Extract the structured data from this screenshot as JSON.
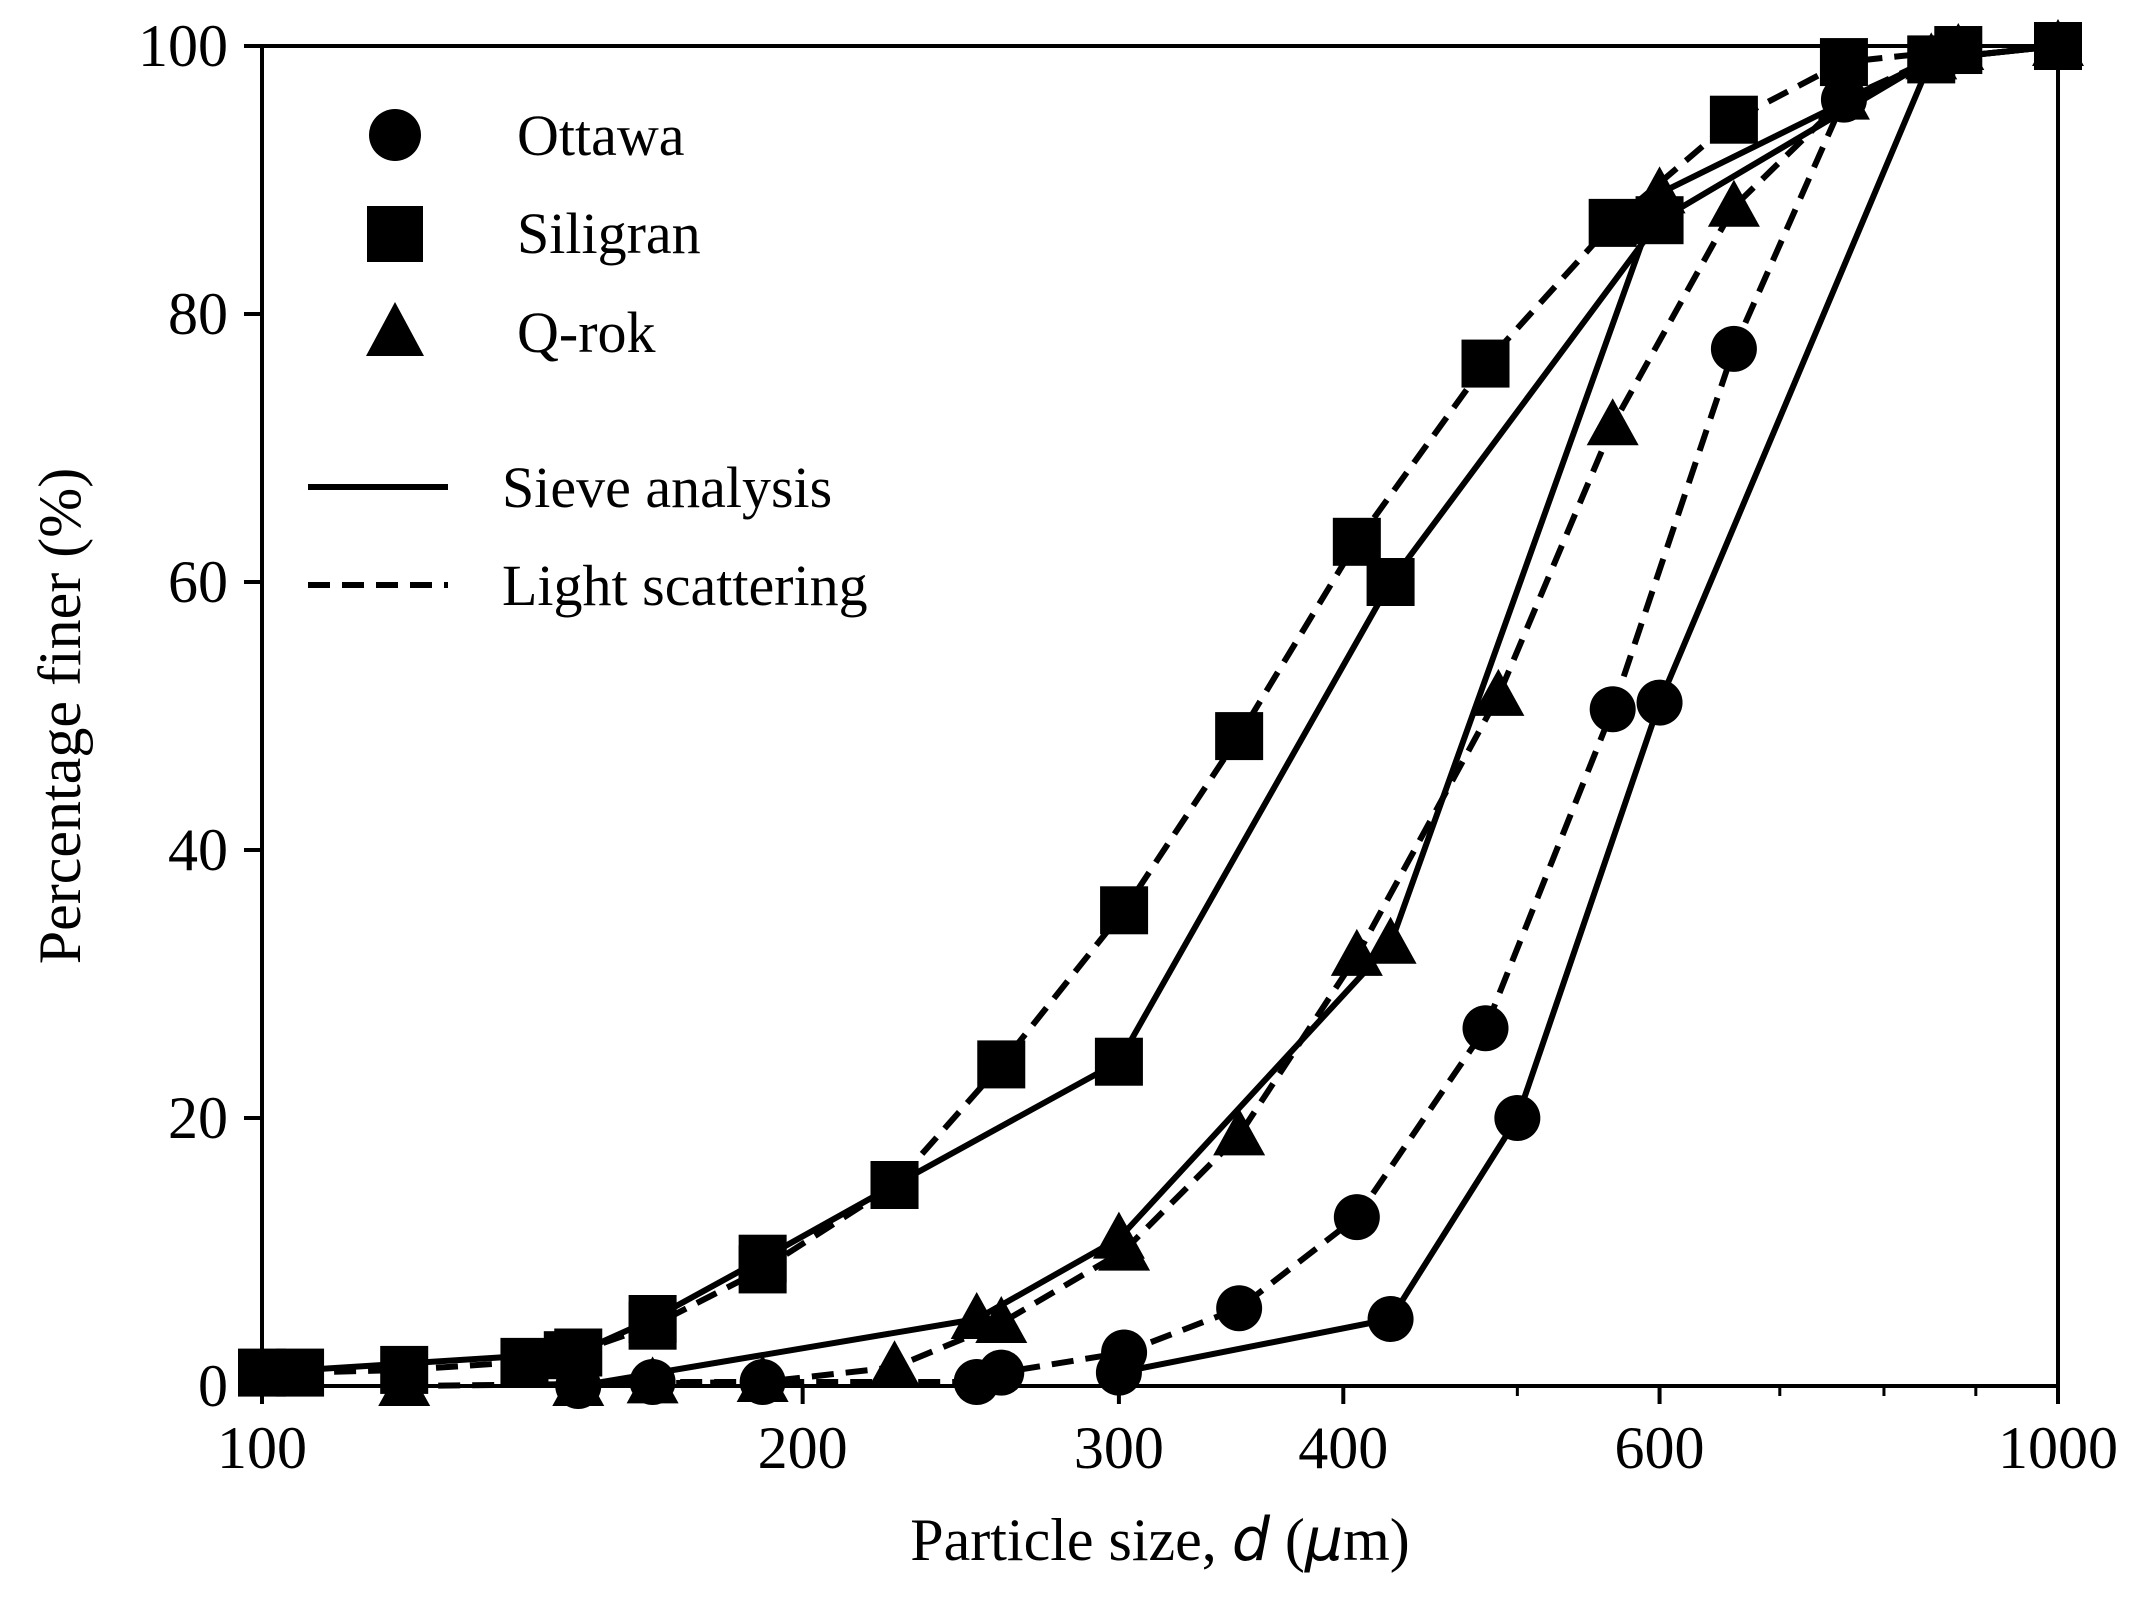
{
  "chart_data": {
    "type": "line",
    "xscale": "log",
    "xlabel_prefix": "Particle size, ",
    "xlabel_var": "d",
    "xlabel_suffix": " (",
    "xlabel_mu": "μ",
    "xlabel_unit": "m)",
    "ylabel": "Percentage finer (%)",
    "xlim": [
      100,
      1000
    ],
    "ylim": [
      0,
      100
    ],
    "xticks": [
      100,
      200,
      300,
      400,
      600,
      1000
    ],
    "xtick_labels": [
      "100",
      "200",
      "300",
      "400",
      "600",
      "1000"
    ],
    "xminor_ticks": [
      500,
      700,
      800,
      900
    ],
    "yticks": [
      0,
      20,
      40,
      60,
      80,
      100
    ],
    "ytick_labels": [
      "0",
      "20",
      "40",
      "60",
      "80",
      "100"
    ],
    "legend_location": "top-left",
    "legend_markers": [
      {
        "label": "Ottawa",
        "marker": "circle"
      },
      {
        "label": "Siligran",
        "marker": "square"
      },
      {
        "label": "Q-rok",
        "marker": "triangle"
      }
    ],
    "legend_lines": [
      {
        "label": "Sieve analysis",
        "style": "solid"
      },
      {
        "label": "Light scattering",
        "style": "dashed"
      }
    ],
    "series": [
      {
        "name": "Ottawa",
        "method": "Sieve analysis",
        "marker": "circle",
        "style": "solid",
        "x": [
          300,
          425,
          500,
          600,
          850,
          1000
        ],
        "y": [
          1,
          5,
          20,
          51,
          99,
          100
        ]
      },
      {
        "name": "Ottawa",
        "method": "Light scattering",
        "marker": "circle",
        "style": "dashed",
        "x": [
          150,
          165,
          190,
          250,
          258,
          302,
          350,
          407,
          480,
          565,
          660,
          760,
          850
        ],
        "y": [
          0,
          0.3,
          0.3,
          0.3,
          1,
          2.5,
          5.8,
          12.6,
          26.7,
          50.5,
          77.4,
          96,
          99
        ]
      },
      {
        "name": "Siligran",
        "method": "Sieve analysis",
        "marker": "square",
        "style": "solid",
        "x": [
          100,
          150,
          165,
          190,
          225,
          300,
          425,
          600,
          850,
          1000
        ],
        "y": [
          1,
          2.5,
          5,
          9.5,
          15,
          24.2,
          60,
          87,
          99,
          100
        ]
      },
      {
        "name": "Siligran",
        "method": "Light scattering",
        "marker": "square",
        "style": "dashed",
        "x": [
          105,
          120,
          140,
          148,
          165,
          190,
          225,
          258,
          302,
          350,
          407,
          480,
          565,
          660,
          760,
          880
        ],
        "y": [
          1,
          1.2,
          1.8,
          2.3,
          4.5,
          8.7,
          15,
          24,
          35.5,
          48.5,
          63,
          76.3,
          86.8,
          94.5,
          98.8,
          99.7
        ]
      },
      {
        "name": "Q-rok",
        "method": "Sieve analysis",
        "marker": "triangle",
        "style": "solid",
        "x": [
          150,
          250,
          300,
          425,
          600,
          850,
          1000
        ],
        "y": [
          0,
          5,
          11,
          33,
          89,
          99,
          100
        ]
      },
      {
        "name": "Q-rok",
        "method": "Light scattering",
        "marker": "triangle",
        "style": "dashed",
        "x": [
          120,
          165,
          190,
          225,
          258,
          302,
          350,
          407,
          488,
          565,
          660,
          760,
          880
        ],
        "y": [
          0,
          0.2,
          0.3,
          1.4,
          4.7,
          10.1,
          18.7,
          32.1,
          51.5,
          71.7,
          88,
          96,
          99.7
        ]
      }
    ]
  }
}
